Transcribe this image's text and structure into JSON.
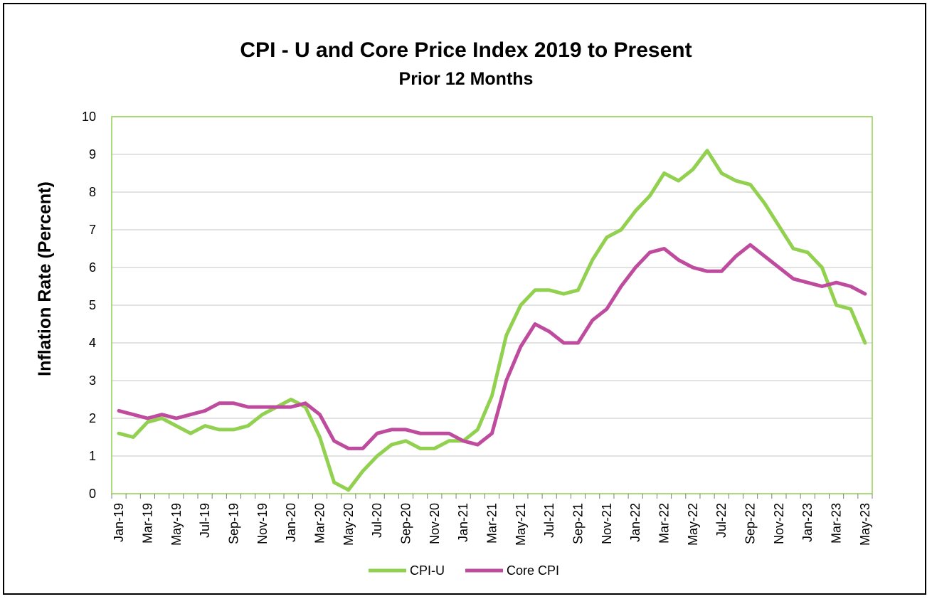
{
  "chart_data": {
    "type": "line",
    "title": "CPI - U and Core Price Index 2019 to Present",
    "subtitle": "Prior 12 Months",
    "xlabel": "",
    "ylabel": "Inflation Rate (Percent)",
    "ylim": [
      0,
      10
    ],
    "yticks": [
      "0",
      "1",
      "2",
      "3",
      "4",
      "5",
      "6",
      "7",
      "8",
      "9",
      "10"
    ],
    "grid": true,
    "legend_position": "bottom",
    "x": [
      "Jan-19",
      "Feb-19",
      "Mar-19",
      "Apr-19",
      "May-19",
      "Jun-19",
      "Jul-19",
      "Aug-19",
      "Sep-19",
      "Oct-19",
      "Nov-19",
      "Dec-19",
      "Jan-20",
      "Feb-20",
      "Mar-20",
      "Apr-20",
      "May-20",
      "Jun-20",
      "Jul-20",
      "Aug-20",
      "Sep-20",
      "Oct-20",
      "Nov-20",
      "Dec-20",
      "Jan-21",
      "Feb-21",
      "Mar-21",
      "Apr-21",
      "May-21",
      "Jun-21",
      "Jul-21",
      "Aug-21",
      "Sep-21",
      "Oct-21",
      "Nov-21",
      "Dec-21",
      "Jan-22",
      "Feb-22",
      "Mar-22",
      "Apr-22",
      "May-22",
      "Jun-22",
      "Jul-22",
      "Aug-22",
      "Sep-22",
      "Oct-22",
      "Nov-22",
      "Dec-22",
      "Jan-23",
      "Feb-23",
      "Mar-23",
      "Apr-23",
      "May-23"
    ],
    "x_tick_labels": [
      "Jan-19",
      "Mar-19",
      "May-19",
      "Jul-19",
      "Sep-19",
      "Nov-19",
      "Jan-20",
      "Mar-20",
      "May-20",
      "Jul-20",
      "Sep-20",
      "Nov-20",
      "Jan-21",
      "Mar-21",
      "May-21",
      "Jul-21",
      "Sep-21",
      "Nov-21",
      "Jan-22",
      "Mar-22",
      "May-22",
      "Jul-22",
      "Sep-22",
      "Nov-22",
      "Jan-23",
      "Mar-23",
      "May-23"
    ],
    "series": [
      {
        "name": "CPI-U",
        "color": "#92D050",
        "values": [
          1.6,
          1.5,
          1.9,
          2.0,
          1.8,
          1.6,
          1.8,
          1.7,
          1.7,
          1.8,
          2.1,
          2.3,
          2.5,
          2.3,
          1.5,
          0.3,
          0.1,
          0.6,
          1.0,
          1.3,
          1.4,
          1.2,
          1.2,
          1.4,
          1.4,
          1.7,
          2.6,
          4.2,
          5.0,
          5.4,
          5.4,
          5.3,
          5.4,
          6.2,
          6.8,
          7.0,
          7.5,
          7.9,
          8.5,
          8.3,
          8.6,
          9.1,
          8.5,
          8.3,
          8.2,
          7.7,
          7.1,
          6.5,
          6.4,
          6.0,
          5.0,
          4.9,
          4.0
        ]
      },
      {
        "name": "Core CPI",
        "color": "#BE4B9D",
        "values": [
          2.2,
          2.1,
          2.0,
          2.1,
          2.0,
          2.1,
          2.2,
          2.4,
          2.4,
          2.3,
          2.3,
          2.3,
          2.3,
          2.4,
          2.1,
          1.4,
          1.2,
          1.2,
          1.6,
          1.7,
          1.7,
          1.6,
          1.6,
          1.6,
          1.4,
          1.3,
          1.6,
          3.0,
          3.9,
          4.5,
          4.3,
          4.0,
          4.0,
          4.6,
          4.9,
          5.5,
          6.0,
          6.4,
          6.5,
          6.2,
          6.0,
          5.9,
          5.9,
          6.3,
          6.6,
          6.3,
          6.0,
          5.7,
          5.6,
          5.5,
          5.6,
          5.5,
          5.3
        ]
      }
    ]
  },
  "colors": {
    "axis": "#92D050",
    "grid": "#D9D9D9",
    "tick_mark": "#7F7F7F"
  }
}
